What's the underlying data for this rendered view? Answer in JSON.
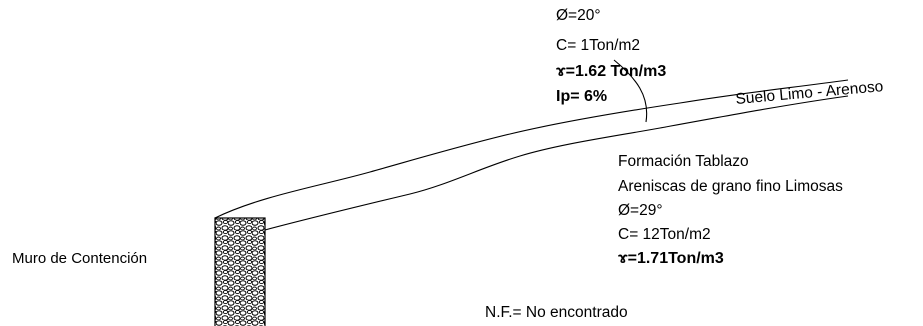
{
  "upper_layer": {
    "phi": "Ø=20°",
    "c": "C= 1Ton/m2",
    "gamma": "ɤ=1.62 Ton/m3",
    "ip": "Ip= 6%",
    "name": "Suelo Limo - Arenoso"
  },
  "lower_layer": {
    "formation": "Formación Tablazo",
    "description": "Areniscas de grano fino Limosas",
    "phi": "Ø=29°",
    "c": "C= 12Ton/m2",
    "gamma": "ɤ=1.71Ton/m3"
  },
  "wall_label": "Muro de Contención",
  "water_table": "N.F.= No encontrado",
  "colors": {
    "ink": "#000000",
    "background": "#ffffff"
  }
}
